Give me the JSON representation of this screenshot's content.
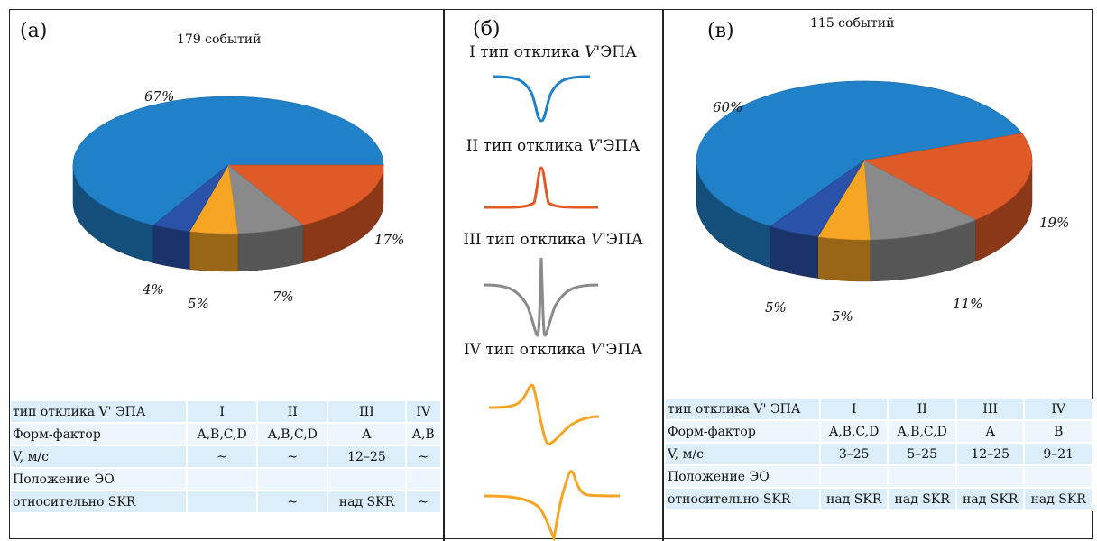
{
  "colors": {
    "type_I": "#2080c8",
    "type_II": "#e05a28",
    "type_III": "#8a8a8a",
    "type_IV_a": "#f5a523",
    "type_IV_b": "#2a52a8"
  },
  "panel_a": {
    "label": "(а)",
    "count": "179 событий",
    "pct_labels": [
      "67%",
      "17%",
      "7%",
      "5%",
      "4%"
    ],
    "table": {
      "rows": [
        {
          "label": "тип отклика V' ЭПА",
          "values": [
            "I",
            "II",
            "III",
            "IV"
          ]
        },
        {
          "label": "Форм-фактор",
          "values": [
            "A,B,C,D",
            "A,B,C,D",
            "A",
            "A,B"
          ]
        },
        {
          "label": "V, м/с",
          "values": [
            "~",
            "~",
            "12–25",
            "~"
          ]
        },
        {
          "label": "Положение ЭО",
          "values": [
            "",
            "",
            "",
            ""
          ]
        },
        {
          "label": "относительно SKR",
          "values": [
            "",
            "~",
            "над SKR",
            "~"
          ]
        }
      ]
    }
  },
  "panel_b": {
    "label": "(б)",
    "types": [
      {
        "prefix": "I тип отклика ",
        "var": "V",
        "suffix": "'ЭПА"
      },
      {
        "prefix": "II тип отклика ",
        "var": "V",
        "suffix": "'ЭПА"
      },
      {
        "prefix": "III тип отклика ",
        "var": "V",
        "suffix": "'ЭПА"
      },
      {
        "prefix": "IV тип отклика ",
        "var": "V",
        "suffix": "'ЭПА"
      }
    ]
  },
  "panel_v": {
    "label": "(в)",
    "count": "115 событий",
    "pct_labels": [
      "60%",
      "19%",
      "11%",
      "5%",
      "5%"
    ],
    "table": {
      "rows": [
        {
          "label": "тип отклика V' ЭПА",
          "values": [
            "I",
            "II",
            "III",
            "IV"
          ]
        },
        {
          "label": "Форм-фактор",
          "values": [
            "A,B,C,D",
            "A,B,C,D",
            "A",
            "B"
          ]
        },
        {
          "label": "V, м/с",
          "values": [
            "3–25",
            "5–25",
            "12–25",
            "9–21"
          ]
        },
        {
          "label": "Положение ЭО",
          "values": [
            "",
            "",
            "",
            ""
          ]
        },
        {
          "label": "относительно SKR",
          "values": [
            "над SKR",
            "над SKR",
            "над SKR",
            "над SKR"
          ]
        }
      ]
    }
  },
  "chart_data": [
    {
      "type": "pie",
      "title": "179 событий",
      "categories": [
        "I",
        "II",
        "III",
        "IV",
        "IV"
      ],
      "values": [
        67,
        17,
        7,
        5,
        4
      ],
      "unit": "%"
    },
    {
      "type": "pie",
      "title": "115 событий",
      "categories": [
        "I",
        "II",
        "III",
        "IV",
        "IV"
      ],
      "values": [
        60,
        19,
        11,
        5,
        5
      ],
      "unit": "%"
    }
  ]
}
